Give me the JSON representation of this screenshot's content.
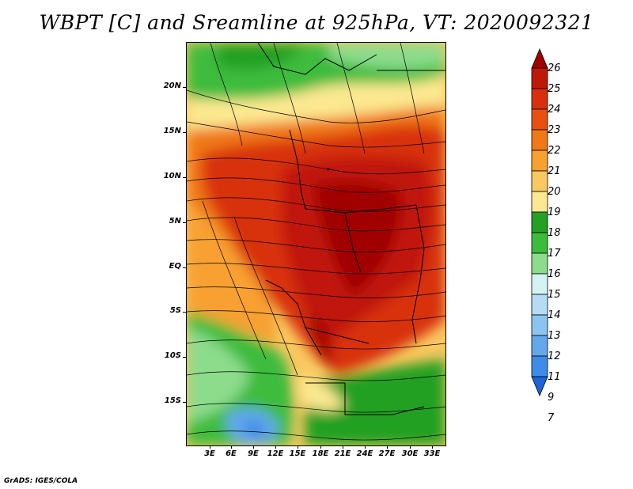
{
  "title": "WBPT [C] and Sreamline at 925hPa, VT: 2020092321",
  "footer": "GrADS: IGES/COLA",
  "map": {
    "variable": "WBPT [C]",
    "level": "925hPa",
    "valid_time": "2020092321",
    "lat_labels": [
      "20N",
      "15N",
      "10N",
      "5N",
      "EQ",
      "5S",
      "10S",
      "15S"
    ],
    "lon_labels": [
      "3E",
      "6E",
      "9E",
      "12E",
      "15E",
      "18E",
      "21E",
      "24E",
      "27E",
      "30E",
      "33E"
    ]
  },
  "colorbar": {
    "labels": [
      "26",
      "25",
      "24",
      "23",
      "22",
      "21",
      "20",
      "19",
      "18",
      "17",
      "16",
      "15",
      "14",
      "13",
      "12",
      "11",
      "9",
      "7"
    ],
    "colors": [
      "#a00000",
      "#c01808",
      "#d8300c",
      "#e85010",
      "#f07818",
      "#f8a030",
      "#fac860",
      "#fce890",
      "#24a024",
      "#3cbc3c",
      "#8cdc8c",
      "#d4f4f4",
      "#b4dcf4",
      "#8cc4f0",
      "#64a8ec",
      "#3c8ce8",
      "#1c64d8"
    ]
  }
}
